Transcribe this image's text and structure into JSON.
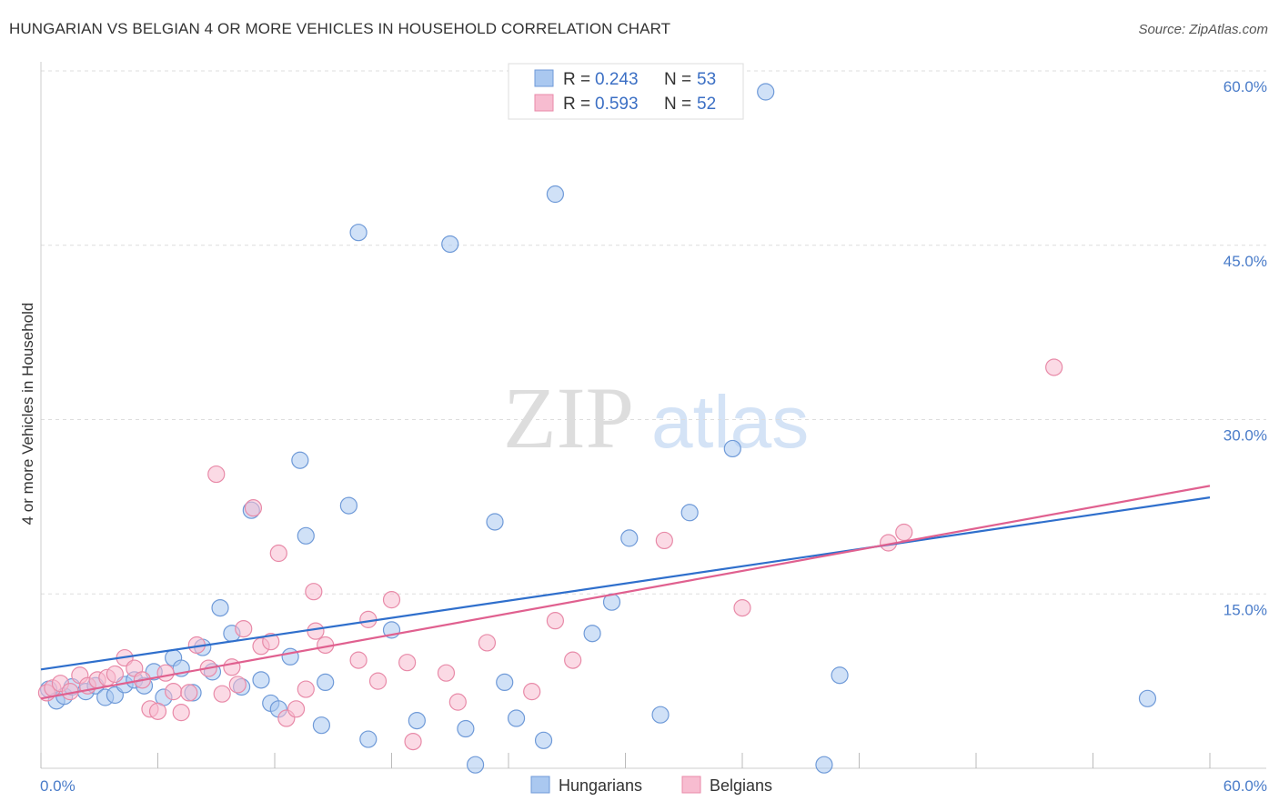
{
  "title": "HUNGARIAN VS BELGIAN 4 OR MORE VEHICLES IN HOUSEHOLD CORRELATION CHART",
  "source": "Source: ZipAtlas.com",
  "watermark": {
    "zip": "ZIP",
    "atlas": "atlas"
  },
  "colors": {
    "blue_fill": "#aac8f0",
    "blue_stroke": "#6f9ad8",
    "blue_line": "#2f6fcc",
    "pink_fill": "#f7bcd0",
    "pink_stroke": "#e88aa8",
    "pink_line": "#e0608f",
    "tick_text": "#4a7cc9",
    "grid": "#dddddd"
  },
  "legend": {
    "rows": [
      {
        "r_label": "R =",
        "r_value": "0.243",
        "n_label": "N =",
        "n_value": "53",
        "series": "blue"
      },
      {
        "r_label": "R =",
        "r_value": "0.593",
        "n_label": "N =",
        "n_value": "52",
        "series": "pink"
      }
    ]
  },
  "bottom_legend": [
    {
      "label": "Hungarians",
      "series": "blue"
    },
    {
      "label": "Belgians",
      "series": "pink"
    }
  ],
  "chart_data": {
    "type": "scatter",
    "title": "HUNGARIAN VS BELGIAN 4 OR MORE VEHICLES IN HOUSEHOLD CORRELATION CHART",
    "xlabel": "",
    "ylabel": "4 or more Vehicles in Household",
    "xlim": [
      0,
      60
    ],
    "ylim": [
      0,
      60
    ],
    "x_tick_labels": [
      "0.0%",
      "60.0%"
    ],
    "y_ticks": [
      15,
      30,
      45,
      60
    ],
    "y_tick_labels": [
      "15.0%",
      "30.0%",
      "45.0%",
      "60.0%"
    ],
    "grid": true,
    "series": [
      {
        "name": "Hungarians",
        "color": "blue",
        "r": 0.243,
        "n": 53,
        "trend": {
          "x": [
            0,
            60
          ],
          "y": [
            8.5,
            23.3
          ]
        },
        "points": [
          [
            0.4,
            6.8
          ],
          [
            0.8,
            5.8
          ],
          [
            1.2,
            6.2
          ],
          [
            1.6,
            7.0
          ],
          [
            2.3,
            6.6
          ],
          [
            2.8,
            7.1
          ],
          [
            3.3,
            6.1
          ],
          [
            3.8,
            6.3
          ],
          [
            4.3,
            7.2
          ],
          [
            4.8,
            7.6
          ],
          [
            5.3,
            7.1
          ],
          [
            5.8,
            8.3
          ],
          [
            6.3,
            6.1
          ],
          [
            6.8,
            9.5
          ],
          [
            7.2,
            8.6
          ],
          [
            7.8,
            6.5
          ],
          [
            8.3,
            10.4
          ],
          [
            8.8,
            8.3
          ],
          [
            9.2,
            13.8
          ],
          [
            9.8,
            11.6
          ],
          [
            10.3,
            7.0
          ],
          [
            10.8,
            22.2
          ],
          [
            11.3,
            7.6
          ],
          [
            11.8,
            5.6
          ],
          [
            12.2,
            5.1
          ],
          [
            12.8,
            9.6
          ],
          [
            13.3,
            26.5
          ],
          [
            13.6,
            20.0
          ],
          [
            14.4,
            3.7
          ],
          [
            14.6,
            7.4
          ],
          [
            15.8,
            22.6
          ],
          [
            16.3,
            46.1
          ],
          [
            16.8,
            2.5
          ],
          [
            18.0,
            11.9
          ],
          [
            19.3,
            4.1
          ],
          [
            21.0,
            45.1
          ],
          [
            21.8,
            3.4
          ],
          [
            23.3,
            21.2
          ],
          [
            23.8,
            7.4
          ],
          [
            24.4,
            4.3
          ],
          [
            25.8,
            2.4
          ],
          [
            26.4,
            49.4
          ],
          [
            28.3,
            11.6
          ],
          [
            29.3,
            14.3
          ],
          [
            30.2,
            19.8
          ],
          [
            31.8,
            4.6
          ],
          [
            33.3,
            22.0
          ],
          [
            35.5,
            27.5
          ],
          [
            37.2,
            58.2
          ],
          [
            40.2,
            0.3
          ],
          [
            41.0,
            8.0
          ],
          [
            56.8,
            6.0
          ],
          [
            22.3,
            0.3
          ]
        ]
      },
      {
        "name": "Belgians",
        "color": "pink",
        "r": 0.593,
        "n": 52,
        "trend": {
          "x": [
            0,
            60
          ],
          "y": [
            6.0,
            24.3
          ]
        },
        "points": [
          [
            0.3,
            6.5
          ],
          [
            0.6,
            6.9
          ],
          [
            1.0,
            7.3
          ],
          [
            1.5,
            6.6
          ],
          [
            2.0,
            8.0
          ],
          [
            2.4,
            7.1
          ],
          [
            2.9,
            7.6
          ],
          [
            3.4,
            7.8
          ],
          [
            3.8,
            8.1
          ],
          [
            4.3,
            9.5
          ],
          [
            4.8,
            8.6
          ],
          [
            5.2,
            7.6
          ],
          [
            5.6,
            5.1
          ],
          [
            6.0,
            4.9
          ],
          [
            6.4,
            8.2
          ],
          [
            6.8,
            6.6
          ],
          [
            7.2,
            4.8
          ],
          [
            7.6,
            6.5
          ],
          [
            8.0,
            10.6
          ],
          [
            8.6,
            8.6
          ],
          [
            9.0,
            25.3
          ],
          [
            9.3,
            6.4
          ],
          [
            9.8,
            8.7
          ],
          [
            10.1,
            7.2
          ],
          [
            10.4,
            12.0
          ],
          [
            10.9,
            22.4
          ],
          [
            11.3,
            10.5
          ],
          [
            11.8,
            10.9
          ],
          [
            12.2,
            18.5
          ],
          [
            12.6,
            4.3
          ],
          [
            13.1,
            5.1
          ],
          [
            13.6,
            6.8
          ],
          [
            14.0,
            15.2
          ],
          [
            14.1,
            11.8
          ],
          [
            14.6,
            10.6
          ],
          [
            16.3,
            9.3
          ],
          [
            16.8,
            12.8
          ],
          [
            17.3,
            7.5
          ],
          [
            18.0,
            14.5
          ],
          [
            18.8,
            9.1
          ],
          [
            19.1,
            2.3
          ],
          [
            20.8,
            8.2
          ],
          [
            21.4,
            5.7
          ],
          [
            22.9,
            10.8
          ],
          [
            25.2,
            6.6
          ],
          [
            26.4,
            12.7
          ],
          [
            27.3,
            9.3
          ],
          [
            32.0,
            19.6
          ],
          [
            36.0,
            13.8
          ],
          [
            43.5,
            19.4
          ],
          [
            44.3,
            20.3
          ],
          [
            52.0,
            34.5
          ]
        ]
      }
    ]
  }
}
